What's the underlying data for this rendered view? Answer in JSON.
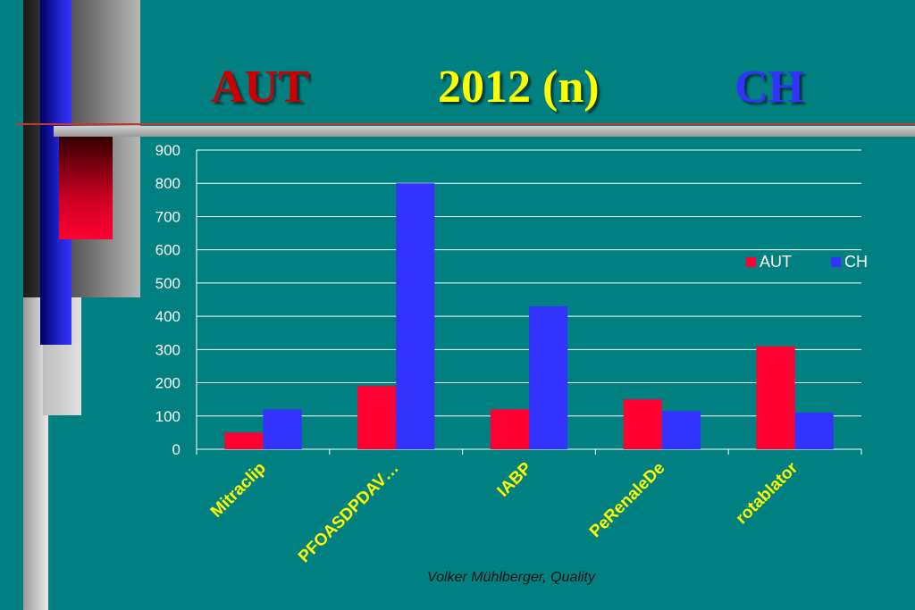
{
  "slide": {
    "title_left": "AUT",
    "title_center": "2012  (n)",
    "title_right": "CH",
    "footer": "Volker Mühlberger, Quality"
  },
  "colors": {
    "background": "#008080",
    "aut": "#ff0033",
    "ch": "#3333ff",
    "title_aut": "#cc0000",
    "title_center": "#ffff00",
    "title_ch": "#3333ff",
    "tick_labels_x": "#ffff00"
  },
  "chart_data": {
    "type": "bar",
    "title": "",
    "xlabel": "",
    "ylabel": "",
    "categories": [
      "Mitraclip",
      "PFOASDPDAV…",
      "IABP",
      "PeRenaleDe",
      "rotablator"
    ],
    "series": [
      {
        "name": "AUT",
        "values": [
          50,
          190,
          120,
          150,
          310
        ],
        "color": "#ff0033"
      },
      {
        "name": "CH",
        "values": [
          120,
          800,
          430,
          115,
          110
        ],
        "color": "#3333ff"
      }
    ],
    "ylim": [
      0,
      900
    ],
    "yticks": [
      0,
      100,
      200,
      300,
      400,
      500,
      600,
      700,
      800,
      900
    ],
    "grid": true,
    "legend_position": "right"
  }
}
